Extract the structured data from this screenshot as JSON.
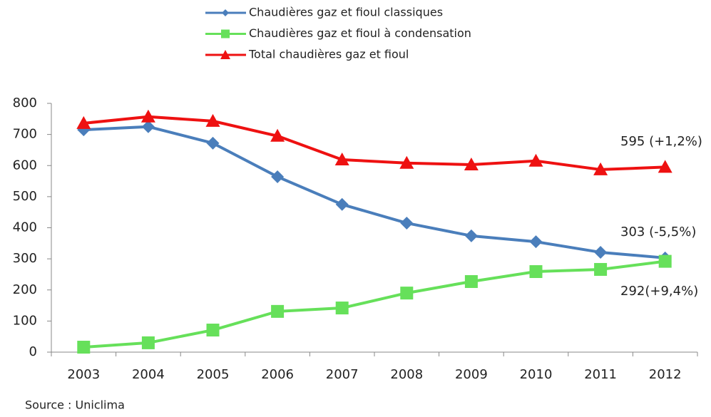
{
  "chart_data": {
    "type": "line",
    "categories": [
      "2003",
      "2004",
      "2005",
      "2006",
      "2007",
      "2008",
      "2009",
      "2010",
      "2011",
      "2012"
    ],
    "series": [
      {
        "name": "Chaudières  gaz et fioul classiques",
        "color": "#4a7ebb",
        "marker": "diamond",
        "values": [
          715,
          725,
          672,
          564,
          475,
          415,
          374,
          355,
          321,
          303
        ]
      },
      {
        "name": "Chaudières  gaz et fioul à condensation",
        "color": "#66e05a",
        "marker": "square",
        "values": [
          16,
          30,
          71,
          131,
          142,
          190,
          227,
          259,
          266,
          292
        ]
      },
      {
        "name": "Total chaudières gaz et fioul",
        "color": "#ee1111",
        "marker": "triangle",
        "values": [
          736,
          757,
          743,
          695,
          619,
          608,
          603,
          615,
          587,
          595
        ]
      }
    ],
    "ylim": [
      0,
      800
    ],
    "yticks": [
      0,
      100,
      200,
      300,
      400,
      500,
      600,
      700,
      800
    ],
    "annotations": [
      "303 (-5,5%)",
      "292(+9,4%)",
      "595 (+1,2%)"
    ],
    "source": "Source : Uniclima"
  }
}
